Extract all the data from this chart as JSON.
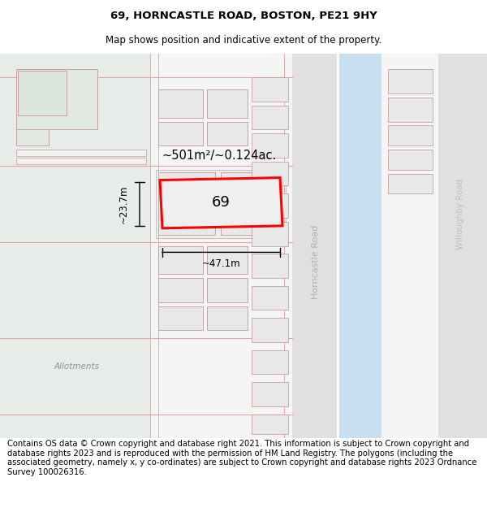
{
  "title": "69, HORNCASTLE ROAD, BOSTON, PE21 9HY",
  "subtitle": "Map shows position and indicative extent of the property.",
  "footer": "Contains OS data © Crown copyright and database right 2021. This information is subject to Crown copyright and database rights 2023 and is reproduced with the permission of HM Land Registry. The polygons (including the associated geometry, namely x, y co-ordinates) are subject to Crown copyright and database rights 2023 Ordnance Survey 100026316.",
  "title_fontsize": 9.5,
  "subtitle_fontsize": 8.5,
  "footer_fontsize": 7.2,
  "allotment_color": "#e8ece8",
  "building_fill": "#e8e8e8",
  "building_edge": "#c8a0a0",
  "property_fill": "#efefef",
  "property_edge": "#ff0000",
  "water_color": "#c8dff0",
  "road_fill": "#e0e0e0",
  "dim_label": "~501m²/~0.124ac.",
  "width_label": "~47.1m",
  "height_label": "~23.7m",
  "number_label": "69",
  "allotments_label": "Allotments",
  "horncastle_label": "Horncastle Road",
  "willoughby_label": "Willoughby Road"
}
